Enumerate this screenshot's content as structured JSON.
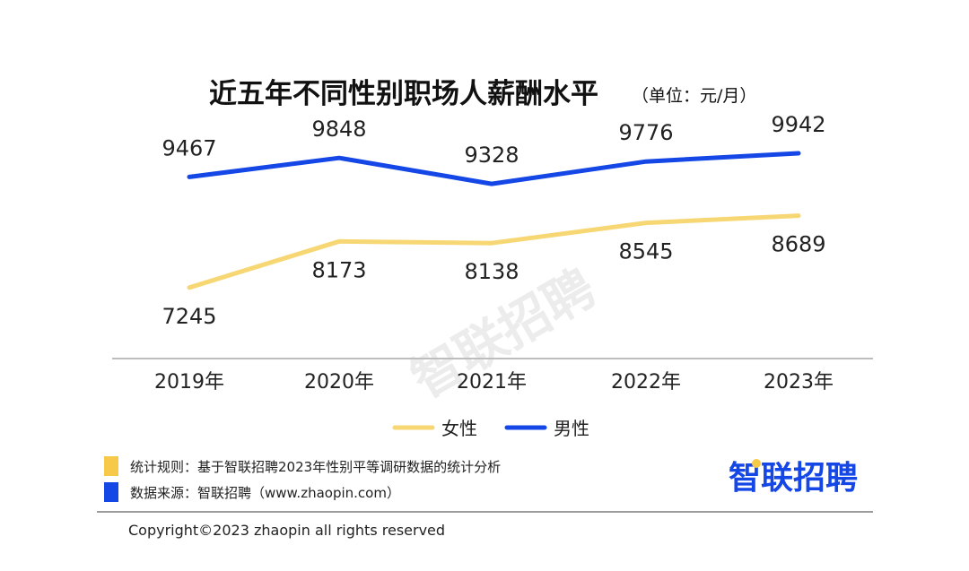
{
  "chart_data": {
    "type": "line",
    "title": "近五年不同性别职场人薪酬水平",
    "unit": "（单位：元/月）",
    "categories": [
      "2019年",
      "2020年",
      "2021年",
      "2022年",
      "2023年"
    ],
    "ylim": [
      6000,
      10500
    ],
    "grid": false,
    "legend_position": "bottom-center",
    "series": [
      {
        "name": "女性",
        "color": "#f7d774",
        "values": [
          7245,
          8173,
          8138,
          8545,
          8689
        ]
      },
      {
        "name": "男性",
        "color": "#1447e6",
        "values": [
          9467,
          9848,
          9328,
          9776,
          9942
        ]
      }
    ]
  },
  "watermark": "智联招聘",
  "footer": {
    "rule_label": "统计规则：基于智联招聘2023年性别平等调研数据的统计分析",
    "rule_color": "#f7c948",
    "source_label": "数据来源：智联招聘（www.zhaopin.com）",
    "source_color": "#1447e6",
    "logo_text": "智联招聘",
    "logo_dot_color": "#f7c948",
    "copyright": "Copyright©2023 zhaopin all rights reserved"
  }
}
